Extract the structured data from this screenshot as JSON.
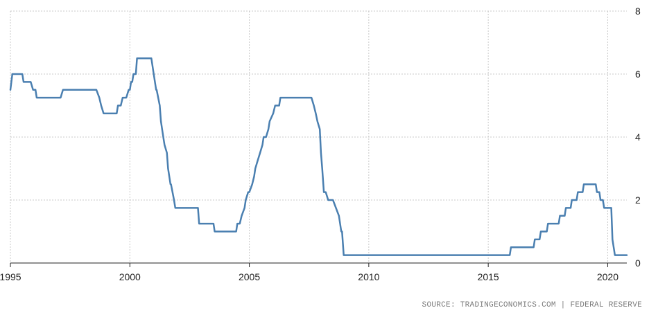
{
  "chart_data": {
    "type": "line",
    "title": "",
    "xlabel": "",
    "ylabel": "",
    "xlim": [
      1995.0,
      2020.8
    ],
    "ylim": [
      0,
      8
    ],
    "grid": true,
    "x_ticks": [
      1995,
      2000,
      2005,
      2010,
      2015,
      2020
    ],
    "x_tick_labels": [
      "1995",
      "2000",
      "2005",
      "2010",
      "2015",
      "2020"
    ],
    "y_ticks": [
      0,
      2,
      4,
      6,
      8
    ],
    "y_tick_labels": [
      "0",
      "2",
      "4",
      "6",
      "8"
    ],
    "colors": {
      "line": "#4a7fb0",
      "grid": "#c8c8c8",
      "axis": "#222222"
    },
    "series": [
      {
        "x": [
          1995.0,
          1995.08,
          1995.5,
          1995.55,
          1995.85,
          1995.95,
          1996.05,
          1996.1,
          1997.1,
          1997.2,
          1998.6,
          1998.72,
          1998.8,
          1998.9,
          1999.45,
          1999.5,
          1999.62,
          1999.7,
          1999.85,
          1999.95,
          2000.0,
          2000.05,
          2000.1,
          2000.15,
          2000.25,
          2000.3,
          2000.42,
          2000.48,
          2000.9,
          2001.0,
          2001.1,
          2001.12,
          2001.25,
          2001.3,
          2001.4,
          2001.45,
          2001.55,
          2001.6,
          2001.7,
          2001.72,
          2001.85,
          2001.9,
          2001.95,
          2002.85,
          2002.9,
          2003.05,
          2003.5,
          2003.55,
          2004.45,
          2004.5,
          2004.6,
          2004.68,
          2004.8,
          2004.85,
          2004.95,
          2005.0,
          2005.12,
          2005.2,
          2005.25,
          2005.35,
          2005.45,
          2005.55,
          2005.6,
          2005.7,
          2005.8,
          2005.85,
          2006.0,
          2006.08,
          2006.25,
          2006.3,
          2006.4,
          2006.45,
          2006.55,
          2007.6,
          2007.7,
          2007.78,
          2007.85,
          2007.95,
          2008.0,
          2008.05,
          2008.12,
          2008.2,
          2008.3,
          2008.5,
          2008.75,
          2008.85,
          2008.88,
          2008.95,
          2009.0,
          2015.9,
          2015.95,
          2016.9,
          2016.95,
          2017.15,
          2017.2,
          2017.45,
          2017.5,
          2017.95,
          2018.0,
          2018.2,
          2018.25,
          2018.45,
          2018.5,
          2018.7,
          2018.75,
          2018.95,
          2019.0,
          2019.5,
          2019.55,
          2019.65,
          2019.7,
          2019.8,
          2019.85,
          2020.15,
          2020.2,
          2020.3,
          2020.8
        ],
        "y": [
          5.5,
          6.0,
          6.0,
          5.75,
          5.75,
          5.5,
          5.5,
          5.25,
          5.25,
          5.5,
          5.5,
          5.25,
          5.0,
          4.75,
          4.75,
          5.0,
          5.0,
          5.25,
          5.25,
          5.5,
          5.5,
          5.75,
          5.75,
          6.0,
          6.0,
          6.5,
          6.5,
          6.5,
          6.5,
          6.0,
          5.5,
          5.5,
          5.0,
          4.5,
          4.0,
          3.75,
          3.5,
          3.0,
          2.5,
          2.5,
          2.0,
          1.75,
          1.75,
          1.75,
          1.25,
          1.25,
          1.25,
          1.0,
          1.0,
          1.25,
          1.25,
          1.5,
          1.75,
          2.0,
          2.25,
          2.25,
          2.5,
          2.75,
          3.0,
          3.25,
          3.5,
          3.75,
          4.0,
          4.0,
          4.25,
          4.5,
          4.75,
          5.0,
          5.0,
          5.25,
          5.25,
          5.25,
          5.25,
          5.25,
          5.0,
          4.75,
          4.5,
          4.25,
          3.5,
          3.0,
          2.25,
          2.25,
          2.0,
          2.0,
          1.5,
          1.0,
          1.0,
          0.25,
          0.25,
          0.25,
          0.5,
          0.5,
          0.75,
          0.75,
          1.0,
          1.0,
          1.25,
          1.25,
          1.5,
          1.5,
          1.75,
          1.75,
          2.0,
          2.0,
          2.25,
          2.25,
          2.5,
          2.5,
          2.25,
          2.25,
          2.0,
          2.0,
          1.75,
          1.75,
          0.75,
          0.25,
          0.25
        ]
      }
    ]
  },
  "footer": {
    "source_text": "SOURCE: TRADINGECONOMICS.COM | FEDERAL RESERVE"
  }
}
